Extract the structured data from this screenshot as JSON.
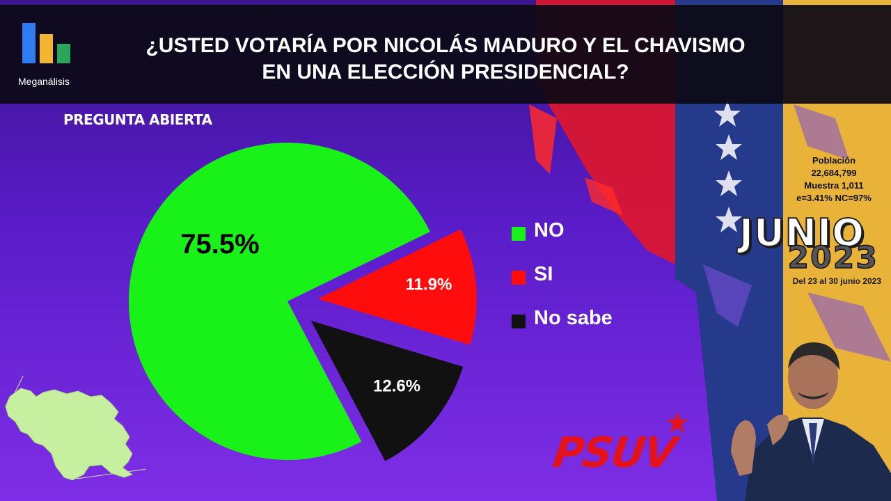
{
  "header": {
    "logo_text": "Meganálisis",
    "title_line1": "¿USTED VOTARÍA POR NICOLÁS MADURO Y EL CHAVISMO",
    "title_line2": "EN UNA ELECCIÓN PRESIDENCIAL?"
  },
  "subtitle": "PREGUNTA  ABIERTA",
  "chart_data": {
    "type": "pie",
    "exploded": true,
    "slices": [
      {
        "name": "NO",
        "value": 75.5,
        "label": "75.5%",
        "color": "#19f219",
        "label_color": "#000000"
      },
      {
        "name": "SI",
        "value": 11.9,
        "label": "11.9%",
        "color": "#ff0d0d",
        "label_color": "#ffffff"
      },
      {
        "name": "No sabe",
        "value": 12.6,
        "label": "12.6%",
        "color": "#111111",
        "label_color": "#ffffff"
      }
    ],
    "legend_position": "right"
  },
  "info": {
    "line1": "Población",
    "line2": "22,684,799",
    "line3": "Muestra 1,011",
    "line4": "e=3.41%  NC=97%"
  },
  "period": {
    "month": "JUNIO",
    "year": "2023",
    "dates": "Del 23 al 30 junio 2023"
  },
  "psuv": {
    "text": "PSUV"
  },
  "colors": {
    "logo_blue": "#2f7bf0",
    "logo_yellow": "#f2b431",
    "logo_green": "#2aa65a",
    "flag_yellow": "#f6c83b",
    "flag_blue": "#22347e",
    "flag_red": "#d2121b"
  }
}
